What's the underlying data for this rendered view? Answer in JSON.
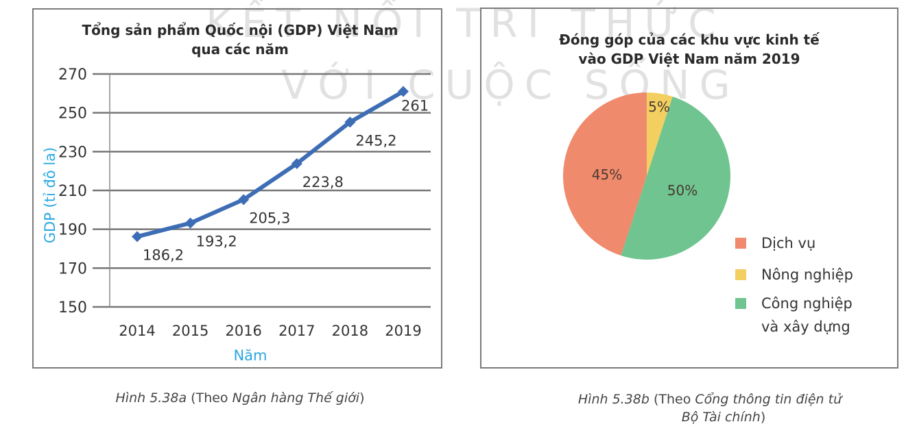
{
  "watermark": {
    "line1": "KẾT NỐI TRI THỨC",
    "line2": "VỚI CUỘC SỐNG"
  },
  "chart_data": [
    {
      "type": "line",
      "title": "Tổng sản phẩm Quốc nội (GDP) Việt Nam qua các năm",
      "title_lines": [
        "Tổng sản phẩm Quốc nội (GDP) Việt Nam",
        "qua các năm"
      ],
      "xlabel": "Năm",
      "ylabel": "GDP (tỉ đô la)",
      "categories": [
        "2014",
        "2015",
        "2016",
        "2017",
        "2018",
        "2019"
      ],
      "values": [
        186.2,
        193.2,
        205.3,
        223.8,
        245.2,
        261
      ],
      "data_labels": [
        "186,2",
        "193,2",
        "205,3",
        "223,8",
        "245,2",
        "261"
      ],
      "ylim": [
        150,
        270
      ],
      "yticks": [
        "150",
        "170",
        "190",
        "210",
        "230",
        "250",
        "270"
      ],
      "grid": true,
      "line_color": "#3d6db5",
      "label_color": "#29a8e0"
    },
    {
      "type": "pie",
      "title": "Đóng góp của các khu vực kinh tế vào GDP Việt Nam năm 2019",
      "title_lines": [
        "Đóng góp của các khu vực kinh tế",
        "vào GDP Việt Nam năm 2019"
      ],
      "slices": [
        {
          "name": "Nông nghiệp",
          "value": 5,
          "label": "5%",
          "color": "#f2cf60"
        },
        {
          "name": "Công nghiệp và xây dựng",
          "value": 50,
          "label": "50%",
          "color": "#6fc48f"
        },
        {
          "name": "Dịch vụ",
          "value": 45,
          "label": "45%",
          "color": "#f08a6c"
        }
      ],
      "legend": [
        {
          "label": "Dịch vụ",
          "color": "#f08a6c"
        },
        {
          "label": "Nông nghiệp",
          "color": "#f2cf60"
        },
        {
          "label": "Công nghiệp",
          "label2": "và xây dựng",
          "color": "#6fc48f"
        }
      ],
      "legend_position": "bottom-right"
    }
  ],
  "captions": {
    "a": {
      "fig": "Hình 5.38a",
      "text1": " (Theo ",
      "src": "Ngân hàng Thế giới",
      "text2": ")"
    },
    "b": {
      "fig": "Hình 5.38b",
      "text1": " (Theo ",
      "src": "Cổng thông tin điện tử",
      "src2": "Bộ Tài chính",
      "text2": ")"
    }
  }
}
